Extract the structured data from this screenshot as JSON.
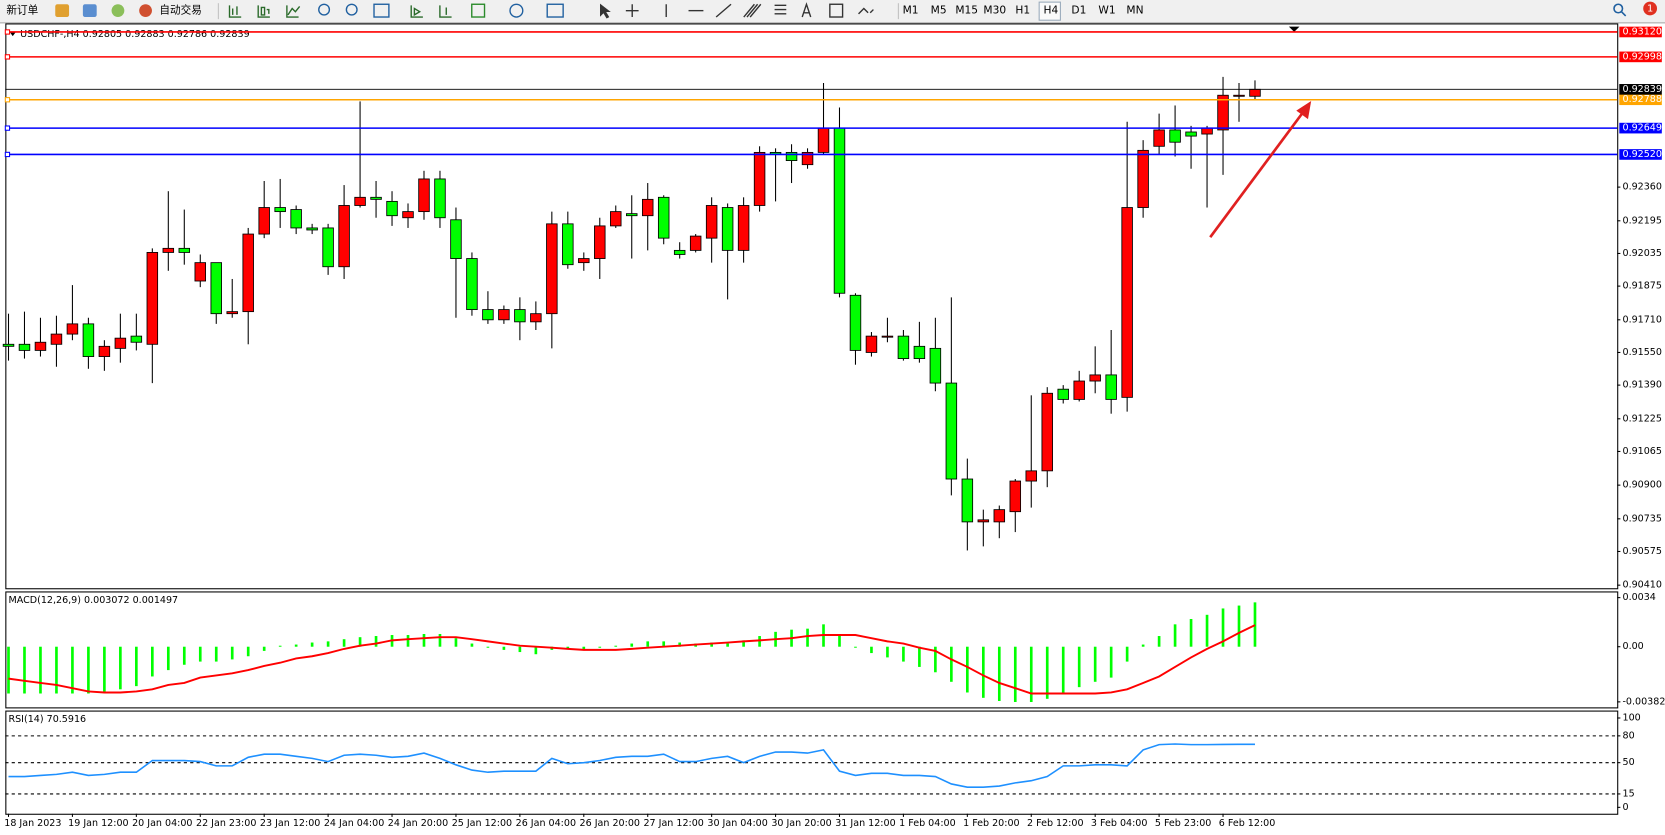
{
  "toolbar": {
    "buttons": [
      "新订单",
      "自动交易"
    ],
    "timeframes": [
      "M1",
      "M5",
      "M15",
      "M30",
      "H1",
      "H4",
      "D1",
      "W1",
      "MN"
    ],
    "notifications": 1
  },
  "chart_data": [
    {
      "type": "candlestick",
      "symbol": "USDCHF-,H4",
      "up_color": "#ff0000",
      "down_color": "#00ff00",
      "candles": [
        [
          0.9159,
          0.9174,
          0.9151,
          0.9158
        ],
        [
          0.9159,
          0.9175,
          0.9152,
          0.9156
        ],
        [
          0.9156,
          0.9172,
          0.9153,
          0.916
        ],
        [
          0.9159,
          0.9173,
          0.9148,
          0.9164
        ],
        [
          0.9164,
          0.9188,
          0.9161,
          0.9169
        ],
        [
          0.9169,
          0.9172,
          0.9147,
          0.9153
        ],
        [
          0.9153,
          0.9161,
          0.9146,
          0.9158
        ],
        [
          0.9157,
          0.9174,
          0.915,
          0.9162
        ],
        [
          0.9163,
          0.9174,
          0.9156,
          0.916
        ],
        [
          0.9159,
          0.9206,
          0.914,
          0.9204
        ],
        [
          0.9204,
          0.9234,
          0.9195,
          0.9206
        ],
        [
          0.9206,
          0.9225,
          0.9198,
          0.9204
        ],
        [
          0.919,
          0.9203,
          0.9187,
          0.9199
        ],
        [
          0.9199,
          0.9199,
          0.9169,
          0.9174
        ],
        [
          0.9174,
          0.9191,
          0.9172,
          0.9175
        ],
        [
          0.9175,
          0.9216,
          0.9159,
          0.9213
        ],
        [
          0.9213,
          0.9239,
          0.9211,
          0.9226
        ],
        [
          0.9226,
          0.924,
          0.9216,
          0.9224
        ],
        [
          0.9225,
          0.9227,
          0.9213,
          0.9216
        ],
        [
          0.9216,
          0.9218,
          0.9213,
          0.9215
        ],
        [
          0.9216,
          0.9218,
          0.9193,
          0.9197
        ],
        [
          0.9197,
          0.9237,
          0.9191,
          0.9227
        ],
        [
          0.9227,
          0.9278,
          0.9226,
          0.9231
        ],
        [
          0.9231,
          0.9239,
          0.9221,
          0.923
        ],
        [
          0.9229,
          0.9234,
          0.9217,
          0.9222
        ],
        [
          0.9221,
          0.9228,
          0.9216,
          0.9224
        ],
        [
          0.9224,
          0.9244,
          0.922,
          0.924
        ],
        [
          0.924,
          0.9244,
          0.9216,
          0.9221
        ],
        [
          0.922,
          0.9226,
          0.9172,
          0.9201
        ],
        [
          0.9201,
          0.9204,
          0.9173,
          0.9176
        ],
        [
          0.9176,
          0.9185,
          0.9169,
          0.9171
        ],
        [
          0.9171,
          0.9178,
          0.9169,
          0.9176
        ],
        [
          0.9176,
          0.9182,
          0.9161,
          0.917
        ],
        [
          0.917,
          0.918,
          0.9166,
          0.9174
        ],
        [
          0.9174,
          0.9224,
          0.9157,
          0.9218
        ],
        [
          0.9218,
          0.9224,
          0.9196,
          0.9198
        ],
        [
          0.9199,
          0.9204,
          0.9195,
          0.9201
        ],
        [
          0.9201,
          0.9221,
          0.9191,
          0.9217
        ],
        [
          0.9217,
          0.9227,
          0.9216,
          0.9224
        ],
        [
          0.9223,
          0.9232,
          0.9201,
          0.9222
        ],
        [
          0.9222,
          0.9238,
          0.9205,
          0.923
        ],
        [
          0.9231,
          0.9232,
          0.9208,
          0.9211
        ],
        [
          0.9205,
          0.9209,
          0.9201,
          0.9203
        ],
        [
          0.9205,
          0.9213,
          0.9204,
          0.9212
        ],
        [
          0.9211,
          0.9231,
          0.9199,
          0.9227
        ],
        [
          0.9226,
          0.9228,
          0.9181,
          0.9205
        ],
        [
          0.9205,
          0.9231,
          0.9199,
          0.9227
        ],
        [
          0.9227,
          0.9256,
          0.9224,
          0.9253
        ],
        [
          0.9253,
          0.9255,
          0.9229,
          0.9252
        ],
        [
          0.9253,
          0.9257,
          0.9238,
          0.9249
        ],
        [
          0.9247,
          0.9255,
          0.9245,
          0.9253
        ],
        [
          0.9253,
          0.9287,
          0.9252,
          0.9265
        ],
        [
          0.9265,
          0.9275,
          0.9182,
          0.9184
        ],
        [
          0.9183,
          0.9184,
          0.9149,
          0.9156
        ],
        [
          0.9155,
          0.9165,
          0.9153,
          0.9163
        ],
        [
          0.9163,
          0.9172,
          0.916,
          0.9163
        ],
        [
          0.9163,
          0.9166,
          0.9151,
          0.9152
        ],
        [
          0.9158,
          0.917,
          0.915,
          0.9152
        ],
        [
          0.9157,
          0.9172,
          0.9136,
          0.914
        ],
        [
          0.914,
          0.9182,
          0.9085,
          0.9093
        ],
        [
          0.9093,
          0.9103,
          0.9058,
          0.9072
        ],
        [
          0.9072,
          0.9078,
          0.906,
          0.9073
        ],
        [
          0.9072,
          0.908,
          0.9064,
          0.9078
        ],
        [
          0.9077,
          0.9093,
          0.9067,
          0.9092
        ],
        [
          0.9092,
          0.9134,
          0.9079,
          0.9097
        ],
        [
          0.9097,
          0.9138,
          0.9089,
          0.9135
        ],
        [
          0.9137,
          0.9139,
          0.913,
          0.9132
        ],
        [
          0.9132,
          0.9146,
          0.9131,
          0.9141
        ],
        [
          0.9141,
          0.9158,
          0.9135,
          0.9144
        ],
        [
          0.9144,
          0.9166,
          0.9125,
          0.9132
        ],
        [
          0.9133,
          0.9268,
          0.9126,
          0.9226
        ],
        [
          0.9226,
          0.9259,
          0.9221,
          0.9254
        ],
        [
          0.9256,
          0.9272,
          0.9252,
          0.9264
        ],
        [
          0.9264,
          0.9276,
          0.9251,
          0.9258
        ],
        [
          0.9263,
          0.9266,
          0.9245,
          0.9261
        ],
        [
          0.9262,
          0.9266,
          0.9226,
          0.9265
        ],
        [
          0.9264,
          0.929,
          0.9242,
          0.9281
        ],
        [
          0.9281,
          0.9287,
          0.9268,
          0.9281
        ],
        [
          0.92805,
          0.92883,
          0.92786,
          0.92839
        ]
      ],
      "categories": [
        "18 Jan 2023",
        null,
        null,
        null,
        "19 Jan 12:00",
        null,
        null,
        null,
        "20 Jan 04:00",
        null,
        null,
        null,
        "22 Jan 23:00",
        null,
        null,
        null,
        "23 Jan 12:00",
        null,
        null,
        null,
        "24 Jan 04:00",
        null,
        null,
        null,
        "24 Jan 20:00",
        null,
        null,
        null,
        "25 Jan 12:00",
        null,
        null,
        null,
        "26 Jan 04:00",
        null,
        null,
        null,
        "26 Jan 20:00",
        null,
        null,
        null,
        "27 Jan 12:00",
        null,
        null,
        null,
        "30 Jan 04:00",
        null,
        null,
        null,
        "30 Jan 20:00",
        null,
        null,
        null,
        "31 Jan 12:00",
        null,
        null,
        null,
        "1 Feb 04:00",
        null,
        null,
        null,
        "1 Feb 20:00",
        null,
        null,
        null,
        "2 Feb 12:00",
        null,
        null,
        null,
        "3 Feb 04:00",
        null,
        null,
        null,
        "5 Feb 23:00",
        null,
        null,
        null,
        "6 Feb 12:00",
        null,
        null
      ],
      "ylim": [
        0.90395,
        0.93162
      ],
      "yticks": [
        {
          "value": 0.9236,
          "label": "0.92360"
        },
        0.92195,
        0.92035,
        0.91875,
        {
          "value": 0.9171,
          "label": "0.91710"
        },
        {
          "value": 0.9155,
          "label": "0.91550"
        },
        {
          "value": 0.9139,
          "label": "0.91390"
        },
        0.91225,
        0.91065,
        {
          "value": 0.909,
          "label": "0.90900"
        },
        0.90735,
        0.90575,
        {
          "value": 0.9041,
          "label": "0.90410"
        }
      ],
      "levels": [
        {
          "value": 0.9312,
          "label": "0.93120",
          "color": "#ff0000"
        },
        {
          "value": 0.92998,
          "color": "#ff0000"
        },
        {
          "value": 0.92788,
          "color": "#ffa500"
        },
        {
          "value": 0.92649,
          "color": "#0000ff"
        },
        {
          "value": 0.9252,
          "label": "0.92520",
          "color": "#0000ff"
        }
      ],
      "price_line_color": "#000000"
    },
    {
      "type": "macd",
      "title": "MACD(12,26,9)",
      "hist_color": "#00ff00",
      "signal_color": "#ff0000",
      "histogram": [
        -0.00324,
        -0.00324,
        -0.00324,
        -0.00324,
        -0.00324,
        -0.00324,
        -0.0031,
        -0.00295,
        -0.00273,
        -0.00206,
        -0.00162,
        -0.00125,
        -0.00103,
        -0.00103,
        -0.00088,
        -0.00066,
        -0.00029,
        7e-05,
        0.00015,
        0.00029,
        0.00037,
        0.00052,
        0.00066,
        0.00074,
        0.00081,
        0.00081,
        0.00088,
        0.00088,
        0.00059,
        0.00022,
        -7e-05,
        -0.00022,
        -0.00037,
        -0.00052,
        -0.00022,
        -0.00015,
        -0.00022,
        -7e-05,
        7e-05,
        0.00022,
        0.00037,
        0.00037,
        0.00029,
        0.00022,
        0.00029,
        0.00022,
        0.00044,
        0.00074,
        0.00103,
        0.00118,
        0.00125,
        0.00155,
        0.00081,
        -7e-05,
        -0.00044,
        -0.00074,
        -0.00103,
        -0.0014,
        -0.00177,
        -0.00243,
        -0.00317,
        -0.00354,
        -0.00376,
        -0.00383,
        -0.00383,
        -0.00361,
        -0.00324,
        -0.0028,
        -0.00243,
        -0.00214,
        -0.00103,
        0.00015,
        0.00074,
        0.00155,
        0.00192,
        0.00221,
        0.00265,
        0.00285,
        0.003072
      ],
      "signal": [
        -0.00221,
        -0.00236,
        -0.00251,
        -0.00265,
        -0.00287,
        -0.0031,
        -0.00317,
        -0.00317,
        -0.0031,
        -0.00295,
        -0.00265,
        -0.00251,
        -0.00214,
        -0.00199,
        -0.00184,
        -0.00162,
        -0.00133,
        -0.00111,
        -0.00081,
        -0.00066,
        -0.00044,
        -0.00015,
        7e-05,
        0.00022,
        0.00044,
        0.00052,
        0.00059,
        0.00066,
        0.00066,
        0.00052,
        0.00037,
        0.00022,
        7e-05,
        0,
        -7e-05,
        -0.00015,
        -0.00022,
        -0.00022,
        -0.00022,
        -0.00015,
        -7e-05,
        0,
        7e-05,
        0.00015,
        0.00022,
        0.00029,
        0.00037,
        0.00044,
        0.00052,
        0.00059,
        0.00074,
        0.00081,
        0.00081,
        0.00081,
        0.00059,
        0.00037,
        0.00022,
        -7e-05,
        -0.00029,
        -0.00088,
        -0.0014,
        -0.00199,
        -0.00251,
        -0.00287,
        -0.00324,
        -0.00324,
        -0.00324,
        -0.00324,
        -0.00324,
        -0.00317,
        -0.00295,
        -0.00251,
        -0.00206,
        -0.0014,
        -0.00074,
        -0.00015,
        0.00037,
        0.00096,
        0.001497
      ],
      "ylim": [
        -0.0042,
        0.00383
      ],
      "yticks": [
        0.0034,
        {
          "value": 0,
          "label": "0.00"
        },
        -0.00382
      ]
    },
    {
      "type": "line",
      "title": "RSI(14)",
      "color": "#1e90ff",
      "level_lines": true,
      "values": [
        34.5,
        34.5,
        35.7,
        36.9,
        39.3,
        35.7,
        36.9,
        39.3,
        39.3,
        52.4,
        52.4,
        52.4,
        51.2,
        46.4,
        46.4,
        56,
        59.5,
        59.5,
        57.1,
        54.8,
        51.2,
        58.3,
        59.5,
        58.3,
        56,
        57.1,
        60.7,
        54.8,
        47.6,
        41.7,
        39.3,
        40.5,
        40.5,
        40.5,
        54.8,
        48.8,
        50,
        52.4,
        56,
        57.1,
        57.1,
        59.5,
        51.2,
        51.2,
        54.8,
        57.1,
        50,
        57.1,
        61.9,
        61.9,
        60.7,
        64.3,
        40.5,
        35.7,
        38.1,
        38.1,
        35.7,
        35.7,
        34.5,
        26.2,
        22.6,
        22.6,
        23.8,
        27.4,
        29.8,
        34.5,
        46.4,
        46.4,
        47.6,
        47.6,
        46.4,
        64.3,
        70.2,
        70.9,
        70.2,
        70.2,
        70.4,
        70.5,
        70.5916
      ],
      "ylim": [
        0,
        100
      ],
      "yticks": [
        100,
        80,
        50,
        15,
        0
      ]
    }
  ]
}
